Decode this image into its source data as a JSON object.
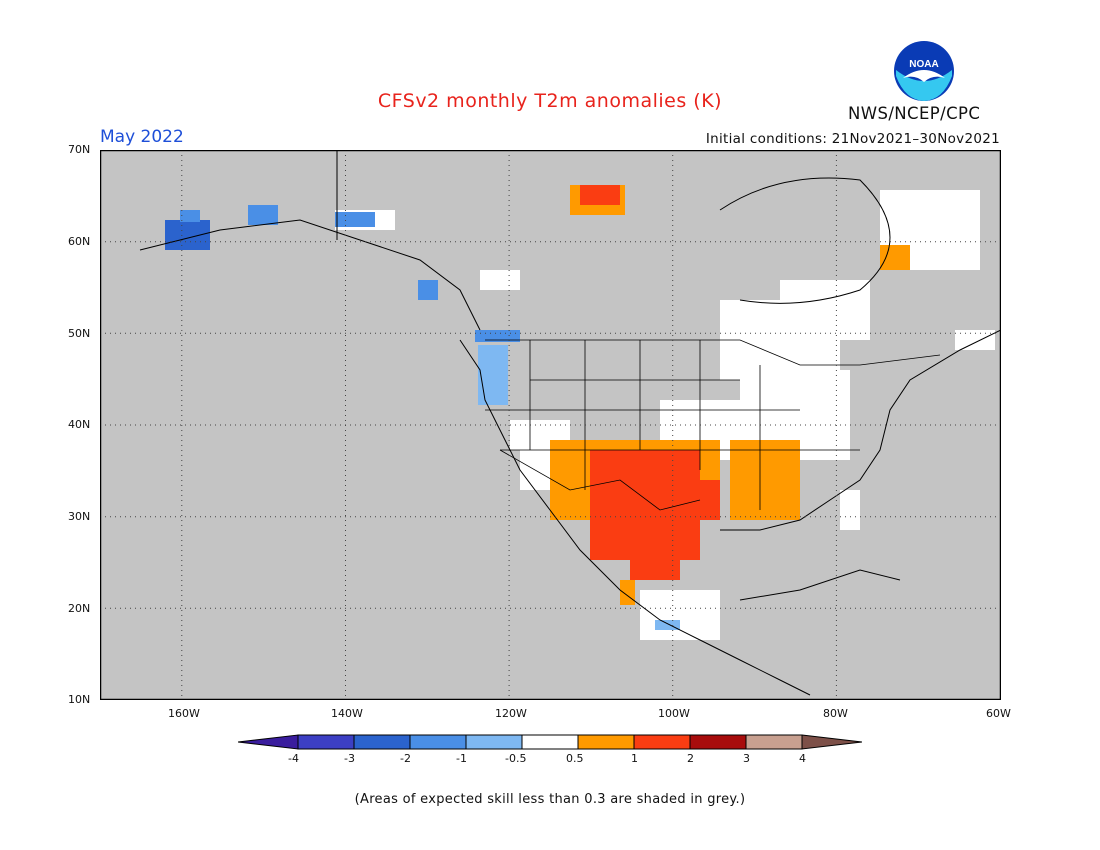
{
  "header": {
    "title": "CFSv2 monthly T2m anomalies (K)",
    "month": "May 2022",
    "initial_conditions": "Initial conditions: 21Nov2021–30Nov2021",
    "agency": "NWS/NCEP/CPC",
    "logo_text": "NOAA"
  },
  "axes": {
    "lat_labels": [
      "70N",
      "60N",
      "50N",
      "40N",
      "30N",
      "20N",
      "10N"
    ],
    "lon_labels": [
      "160W",
      "140W",
      "120W",
      "100W",
      "80W",
      "60W"
    ]
  },
  "colorbar": {
    "labels": [
      "-4",
      "-3",
      "-2",
      "-1",
      "-0.5",
      "0.5",
      "1",
      "2",
      "3",
      "4"
    ],
    "colors": [
      "#3a1d9e",
      "#3c3fc4",
      "#2b63cd",
      "#4a8fe6",
      "#7eb8f2",
      "#ffffff",
      "#ff9a00",
      "#fa3d12",
      "#a80c0c",
      "#c8a090",
      "#7d5048"
    ]
  },
  "map": {
    "background": "#c4c4c4",
    "extent": {
      "lon": [
        -171,
        -60
      ],
      "lat": [
        10,
        70
      ]
    },
    "skill_mask_color": "#c4c4c4"
  },
  "footnote": "(Areas of expected skill less than 0.3 are shaded in grey.)"
}
